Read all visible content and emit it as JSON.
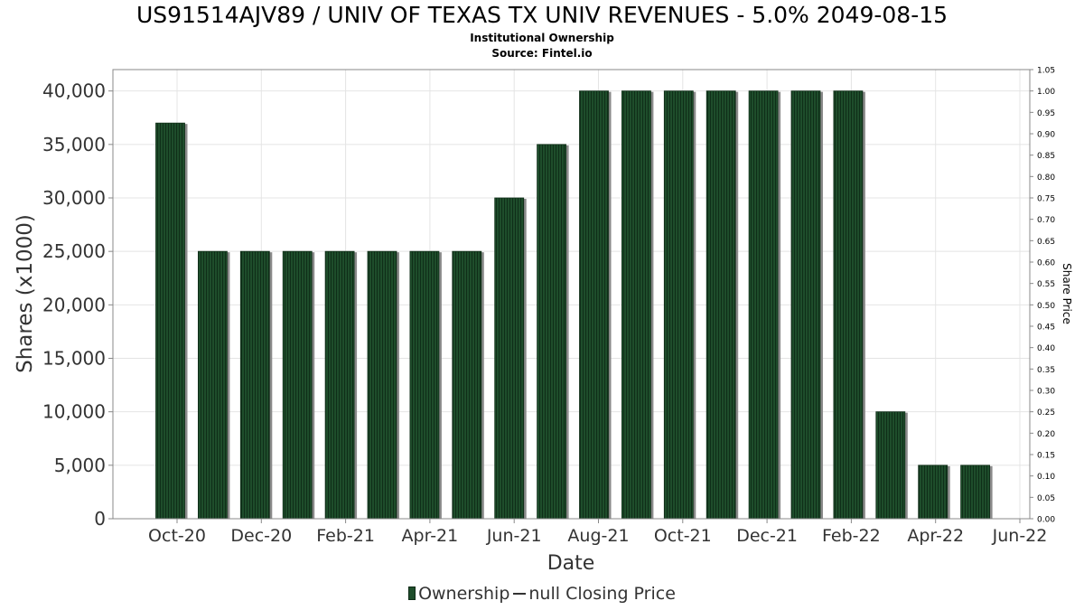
{
  "title": "US91514AJV89 / UNIV OF TEXAS TX UNIV REVENUES - 5.0% 2049-08-15",
  "subtitle": "Institutional Ownership",
  "source": "Source: Fintel.io",
  "legend": {
    "ownership_label": "Ownership",
    "price_label": "null Closing Price"
  },
  "colors": {
    "bar": "#1e4d2b",
    "bar_stripe": "#0f2e18",
    "bar_shadow": "#8a8a8a",
    "grid": "#e4e4e4",
    "axis": "#888888"
  },
  "chart_data": {
    "type": "bar",
    "xlabel": "Date",
    "ylabel": "Shares (x1000)",
    "y2label": "Share Price",
    "ylim": [
      0,
      42000
    ],
    "y2lim": [
      0,
      1.05
    ],
    "yticks": [
      0,
      5000,
      10000,
      15000,
      20000,
      25000,
      30000,
      35000,
      40000
    ],
    "yticklabels": [
      "0",
      "5,000",
      "10,000",
      "15,000",
      "20,000",
      "25,000",
      "30,000",
      "35,000",
      "40,000"
    ],
    "y2ticklabels": [
      "0.00",
      "0.05",
      "0.10",
      "0.15",
      "0.20",
      "0.25",
      "0.30",
      "0.35",
      "0.40",
      "0.45",
      "0.50",
      "0.55",
      "0.60",
      "0.65",
      "0.70",
      "0.75",
      "0.80",
      "0.85",
      "0.90",
      "0.95",
      "1.00",
      "1.05"
    ],
    "xticklabels": [
      "Oct-20",
      "Dec-20",
      "Feb-21",
      "Apr-21",
      "Jun-21",
      "Aug-21",
      "Oct-21",
      "Dec-21",
      "Feb-22",
      "Apr-22",
      "Jun-22"
    ],
    "grid": true,
    "legend_position": "bottom-center",
    "series": [
      {
        "name": "Ownership",
        "values": [
          37000,
          25000,
          25000,
          25000,
          25000,
          25000,
          25000,
          25000,
          30000,
          35000,
          40000,
          40000,
          40000,
          40000,
          40000,
          40000,
          40000,
          10000,
          5000,
          5000
        ]
      },
      {
        "name": "null Closing Price",
        "values": []
      }
    ]
  }
}
